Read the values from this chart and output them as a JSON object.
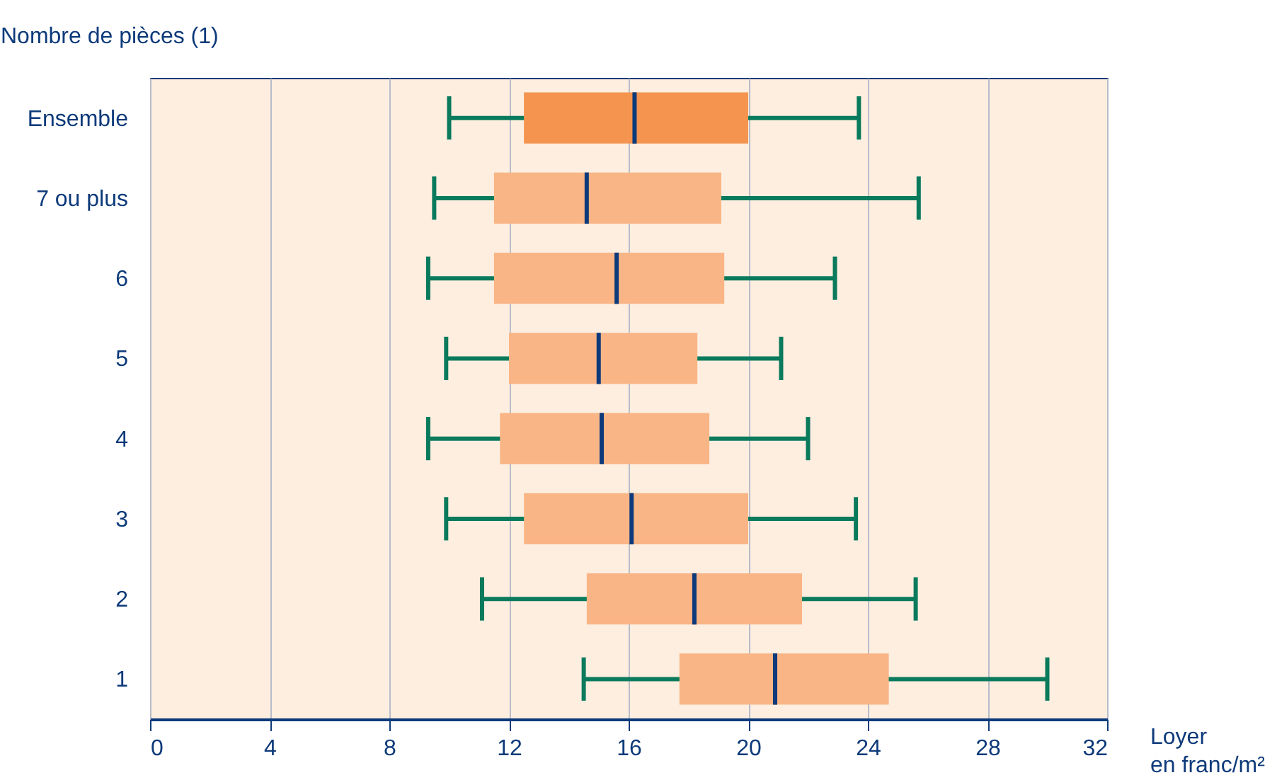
{
  "chart_data": {
    "type": "box",
    "orientation": "horizontal",
    "ylabel": "Nombre de pièces (1)",
    "xlabel": "Loyer en franc/m²",
    "categories": [
      "Ensemble",
      "7 ou plus",
      "6",
      "5",
      "4",
      "3",
      "2",
      "1"
    ],
    "colors": [
      "#f5944f",
      "#f9b585",
      "#f9b585",
      "#f9b585",
      "#f9b585",
      "#f9b585",
      "#f9b585",
      "#f9b585"
    ],
    "boxes": [
      {
        "low": 10.0,
        "q1": 12.5,
        "median": 16.2,
        "q3": 20.0,
        "high": 23.7
      },
      {
        "low": 9.5,
        "q1": 11.5,
        "median": 14.6,
        "q3": 19.1,
        "high": 25.7
      },
      {
        "low": 9.3,
        "q1": 11.5,
        "median": 15.6,
        "q3": 19.2,
        "high": 22.9
      },
      {
        "low": 9.9,
        "q1": 12.0,
        "median": 15.0,
        "q3": 18.3,
        "high": 21.1
      },
      {
        "low": 9.3,
        "q1": 11.7,
        "median": 15.1,
        "q3": 18.7,
        "high": 22.0
      },
      {
        "low": 9.9,
        "q1": 12.5,
        "median": 16.1,
        "q3": 20.0,
        "high": 23.6
      },
      {
        "low": 11.1,
        "q1": 14.6,
        "median": 18.2,
        "q3": 21.8,
        "high": 25.6
      },
      {
        "low": 14.5,
        "q1": 17.7,
        "median": 20.9,
        "q3": 24.7,
        "high": 30.0
      }
    ],
    "xlim": [
      0,
      32
    ],
    "xticks": [
      0,
      4,
      8,
      12,
      16,
      20,
      24,
      28,
      32
    ],
    "grid": "x"
  }
}
